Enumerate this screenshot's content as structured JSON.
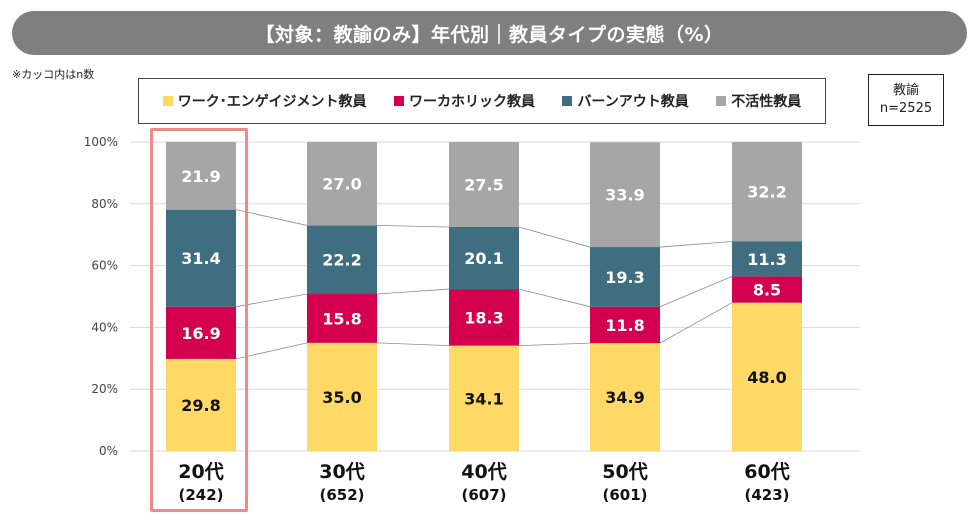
{
  "header": {
    "title": "【対象：教諭のみ】年代別｜教員タイプの実態（%）",
    "note": "※カッコ内はn数"
  },
  "sample": {
    "group": "教諭",
    "n": "n=2525"
  },
  "legend": [
    {
      "label": "ワーク･エンゲイジメント教員",
      "color": "#FFD966"
    },
    {
      "label": "ワーカホリック教員",
      "color": "#D4004F"
    },
    {
      "label": "バーンアウト教員",
      "color": "#3F6E80"
    },
    {
      "label": "不活性教員",
      "color": "#A6A6A6"
    }
  ],
  "chart_data": {
    "type": "bar",
    "stacked": true,
    "categories": [
      "20代",
      "30代",
      "40代",
      "50代",
      "60代"
    ],
    "category_counts": [
      "(242)",
      "(652)",
      "(607)",
      "(601)",
      "(423)"
    ],
    "series": [
      {
        "name": "ワーク･エンゲイジメント教員",
        "color": "#FFD966",
        "label_color": "#111111",
        "values": [
          29.8,
          35.0,
          34.1,
          34.9,
          48.0
        ]
      },
      {
        "name": "ワーカホリック教員",
        "color": "#D4004F",
        "label_color": "#ffffff",
        "values": [
          16.9,
          15.8,
          18.3,
          11.8,
          8.5
        ]
      },
      {
        "name": "バーンアウト教員",
        "color": "#3F6E80",
        "label_color": "#ffffff",
        "values": [
          31.4,
          22.2,
          20.1,
          19.3,
          11.3
        ]
      },
      {
        "name": "不活性教員",
        "color": "#A6A6A6",
        "label_color": "#ffffff",
        "values": [
          21.9,
          27.0,
          27.5,
          33.9,
          32.2
        ]
      }
    ],
    "yticks": [
      "0%",
      "20%",
      "40%",
      "60%",
      "80%",
      "100%"
    ],
    "ylim": [
      0,
      100
    ],
    "grid": true,
    "highlighted_category": "20代"
  }
}
